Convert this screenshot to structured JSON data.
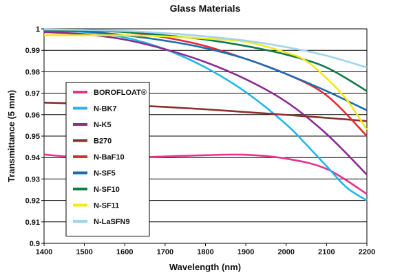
{
  "chart_data": {
    "type": "line",
    "title": "Glass Materials",
    "xlabel": "Wavelength (nm)",
    "ylabel": "Transmittance (5 mm)",
    "xlim": [
      1400,
      2200
    ],
    "ylim": [
      0.9,
      1.0
    ],
    "x_ticks": [
      1400,
      1500,
      1600,
      1700,
      1800,
      1900,
      2000,
      2100,
      2200
    ],
    "y_ticks": [
      0.9,
      0.91,
      0.92,
      0.93,
      0.94,
      0.95,
      0.96,
      0.97,
      0.98,
      0.99,
      1
    ],
    "y_tick_labels": [
      "0.9",
      "0.91",
      "0.92",
      "0.93",
      "0.94",
      "0.95",
      "0.96",
      "0.97",
      "0.98",
      "0.99",
      "1"
    ],
    "grid": "horizontal",
    "legend_position": "inside left",
    "series": [
      {
        "name": "BOROFLOAT®",
        "color": "#e8318f",
        "x": [
          1400,
          1500,
          1600,
          1700,
          1800,
          1900,
          2000,
          2100,
          2200
        ],
        "y": [
          0.9414,
          0.9399,
          0.94,
          0.9405,
          0.9411,
          0.9413,
          0.9395,
          0.9347,
          0.923
        ]
      },
      {
        "name": "N-BK7",
        "color": "#1fb8e6",
        "x": [
          1400,
          1500,
          1600,
          1700,
          1800,
          1900,
          2000,
          2050,
          2100,
          2150,
          2200
        ],
        "y": [
          0.999,
          0.9985,
          0.996,
          0.9905,
          0.982,
          0.9705,
          0.9555,
          0.946,
          0.936,
          0.926,
          0.92
        ]
      },
      {
        "name": "N-K5",
        "color": "#8c2b91",
        "x": [
          1400,
          1500,
          1600,
          1700,
          1800,
          1900,
          2000,
          2100,
          2200
        ],
        "y": [
          0.9985,
          0.9975,
          0.995,
          0.9905,
          0.9845,
          0.9765,
          0.966,
          0.951,
          0.932
        ]
      },
      {
        "name": "B270",
        "color": "#8b2f2a",
        "x": [
          1400,
          1500,
          1600,
          1700,
          1800,
          1900,
          2000,
          2100,
          2200
        ],
        "y": [
          0.9656,
          0.9651,
          0.9645,
          0.9636,
          0.9625,
          0.9612,
          0.9599,
          0.9585,
          0.957
        ]
      },
      {
        "name": "N-BaF10",
        "color": "#e32a32",
        "x": [
          1400,
          1500,
          1600,
          1700,
          1800,
          1900,
          2000,
          2100,
          2200
        ],
        "y": [
          0.999,
          0.999,
          0.9985,
          0.996,
          0.992,
          0.986,
          0.979,
          0.969,
          0.95
        ]
      },
      {
        "name": "N-SF5",
        "color": "#1d6cb0",
        "x": [
          1400,
          1500,
          1600,
          1700,
          1800,
          1900,
          2000,
          2100,
          2200
        ],
        "y": [
          0.9992,
          0.9988,
          0.997,
          0.9945,
          0.991,
          0.986,
          0.979,
          0.971,
          0.962
        ]
      },
      {
        "name": "N-SF10",
        "color": "#0f7a4a",
        "x": [
          1400,
          1500,
          1600,
          1700,
          1800,
          1900,
          2000,
          2100,
          2200
        ],
        "y": [
          0.9995,
          0.9993,
          0.9985,
          0.997,
          0.995,
          0.992,
          0.988,
          0.982,
          0.971
        ]
      },
      {
        "name": "N-SF11",
        "color": "#f2ea19",
        "x": [
          1400,
          1500,
          1600,
          1700,
          1800,
          1900,
          2000,
          2050,
          2100,
          2150,
          2200
        ],
        "y": [
          0.997,
          0.997,
          0.997,
          0.9965,
          0.9955,
          0.994,
          0.989,
          0.985,
          0.977,
          0.967,
          0.953
        ]
      },
      {
        "name": "N-LaSFN9",
        "color": "#9fd3ef",
        "x": [
          1400,
          1500,
          1600,
          1700,
          1800,
          1900,
          2000,
          2100,
          2200
        ],
        "y": [
          0.9997,
          0.9995,
          0.999,
          0.998,
          0.9965,
          0.9945,
          0.9915,
          0.9875,
          0.982
        ]
      }
    ]
  }
}
